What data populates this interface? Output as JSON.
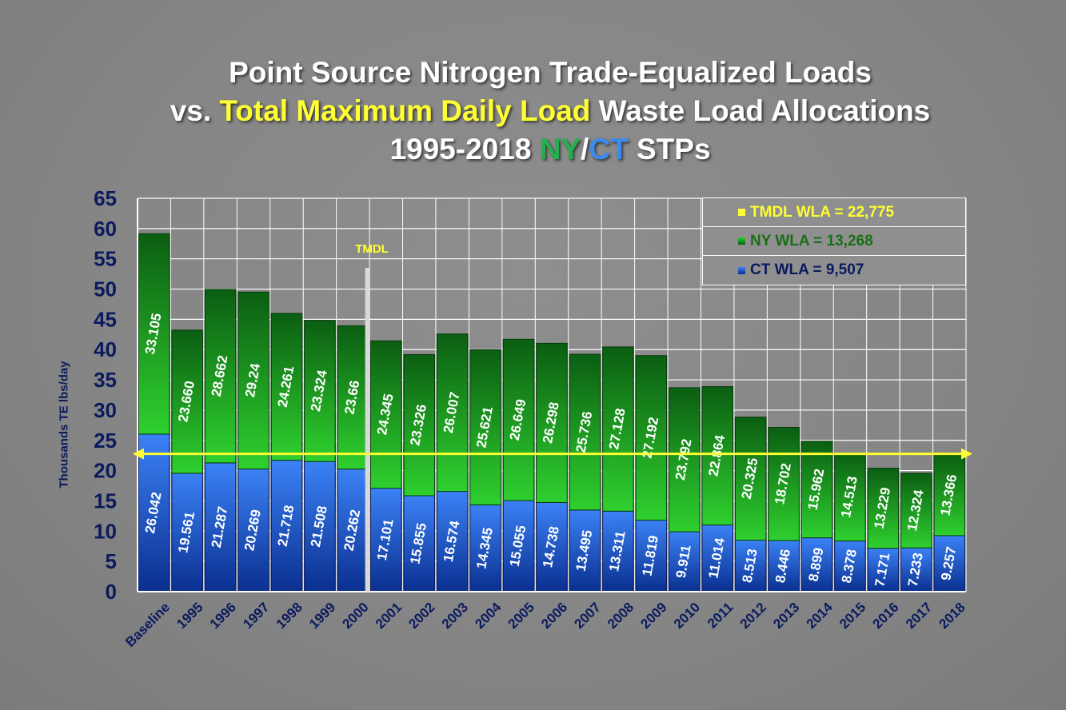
{
  "title": {
    "line1": "Point Source Nitrogen Trade-Equalized Loads",
    "line2_prefix": "vs. ",
    "line2_highlight": "Total Maximum Daily Load",
    "line2_suffix": " Waste Load Allocations",
    "line3_prefix": "1995-2018 ",
    "line3_ny": "NY",
    "line3_sep": "/",
    "line3_ct": "CT",
    "line3_suffix": " STPs"
  },
  "legend": {
    "tmdl": "TMDL WLA  = 22,775",
    "ny": "NY WLA = 13,268",
    "ct": "CT WLA = 9,507"
  },
  "tmdl_marker_label": "TMDL",
  "colors": {
    "ny_top": "#0b5e12",
    "ny_bottom": "#2fd02f",
    "ct_top": "#3b82f6",
    "ct_bottom": "#0a2f8f",
    "tmdl_line": "#ffff33",
    "axis_text": "#0a1a5e"
  },
  "chart_data": {
    "type": "bar",
    "stacked": true,
    "ylabel": "Thousands TE lbs/day",
    "ylim": [
      0,
      65
    ],
    "yticks": [
      0,
      5,
      10,
      15,
      20,
      25,
      30,
      35,
      40,
      45,
      50,
      55,
      60,
      65
    ],
    "grid": true,
    "categories": [
      "Baseline",
      "1995",
      "1996",
      "1997",
      "1998",
      "1999",
      "2000",
      "2001",
      "2002",
      "2003",
      "2004",
      "2005",
      "2006",
      "2007",
      "2008",
      "2009",
      "2010",
      "2011",
      "2012",
      "2013",
      "2014",
      "2015",
      "2016",
      "2017",
      "2018"
    ],
    "series": [
      {
        "name": "CT",
        "values": [
          26.042,
          19.561,
          21.287,
          20.269,
          21.718,
          21.508,
          20.262,
          17.101,
          15.855,
          16.574,
          14.345,
          15.055,
          14.738,
          13.495,
          13.311,
          11.819,
          9.911,
          11.014,
          8.513,
          8.446,
          8.899,
          8.378,
          7.171,
          7.233,
          9.257
        ],
        "labels": [
          "26.042",
          "19.561",
          "21.287",
          "20.269",
          "21.718",
          "21.508",
          "20.262",
          "17.101",
          "15.855",
          "16.574",
          "14.345",
          "15.055",
          "14.738",
          "13.495",
          "13.311",
          "11.819",
          "9.911",
          "11.014",
          "8.513",
          "8.446",
          "8.899",
          "8.378",
          "7.171",
          "7.233",
          "9.257"
        ]
      },
      {
        "name": "NY",
        "values": [
          33.105,
          23.66,
          28.662,
          29.24,
          24.261,
          23.324,
          23.66,
          24.345,
          23.326,
          26.007,
          25.621,
          26.649,
          26.298,
          25.736,
          27.128,
          27.192,
          23.792,
          22.864,
          20.325,
          18.702,
          15.962,
          14.513,
          13.229,
          12.324,
          13.366
        ],
        "labels": [
          "33.105",
          "23.660",
          "28.662",
          "29.24",
          "24.261",
          "23.324",
          "23.66",
          "24.345",
          "23.326",
          "26.007",
          "25.621",
          "26.649",
          "26.298",
          "25.736",
          "27.128",
          "27.192",
          "23.792",
          "22.864",
          "20.325",
          "18.702",
          "15.962",
          "14.513",
          "13.229",
          "12.324",
          "13.366"
        ]
      }
    ],
    "reference_line": {
      "name": "TMDL WLA",
      "value": 22.775
    },
    "tmdl_marker_between": [
      "2000",
      "2001"
    ],
    "legend": "top-right"
  }
}
